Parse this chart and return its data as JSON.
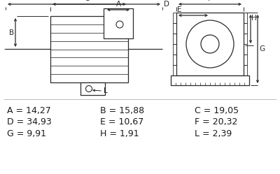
{
  "bg_color": "#ffffff",
  "line_color": "#2a2a2a",
  "text_color": "#1a1a1a",
  "font_size": 9.0,
  "labels": [
    [
      "A = 14,27",
      "B = 15,88",
      "C = 19,05"
    ],
    [
      "D = 34,93",
      "E = 10,67",
      "F = 20,32"
    ],
    [
      "G = 9,91",
      "H = 1,91",
      "L = 2,39"
    ]
  ]
}
